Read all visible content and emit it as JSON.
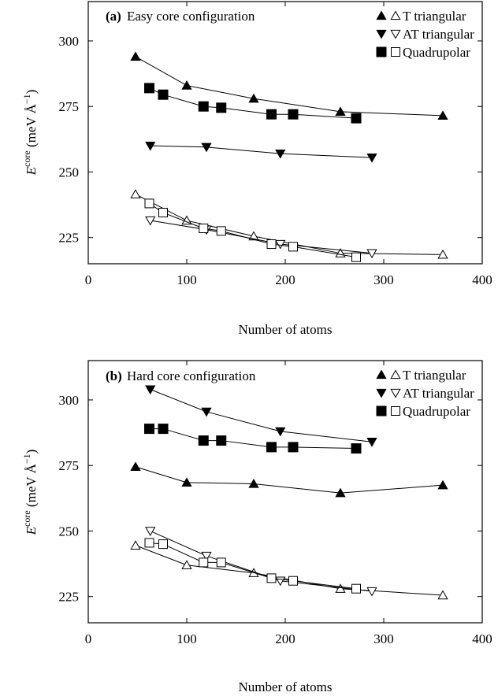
{
  "chart_data": [
    {
      "type": "line",
      "panel_label": "(a)",
      "title": "Easy core configuration",
      "xlabel": "Number of atoms",
      "ylabel_main": "E",
      "ylabel_sup": "core",
      "ylabel_unit": "(meV Å",
      "ylabel_unit_sup": "−1",
      "ylabel_unit_close": ")",
      "xlim": [
        0,
        400
      ],
      "ylim": [
        215,
        315
      ],
      "xticks": [
        0,
        100,
        200,
        300,
        400
      ],
      "yticks": [
        225,
        250,
        275,
        300
      ],
      "grid": false,
      "legend_position": "top-right",
      "series": [
        {
          "name": "T triangular",
          "marker": "triangle-up",
          "filled": true,
          "x": [
            48,
            100,
            168,
            256,
            360
          ],
          "y": [
            294,
            283,
            278,
            273,
            271.5
          ]
        },
        {
          "name": "AT triangular",
          "marker": "triangle-down",
          "filled": true,
          "x": [
            63,
            120,
            195,
            288
          ],
          "y": [
            260,
            259.5,
            257,
            255.5
          ]
        },
        {
          "name": "Quadrupolar",
          "marker": "square",
          "filled": true,
          "x": [
            62,
            76,
            117,
            135,
            186,
            208,
            272
          ],
          "y": [
            282,
            279.5,
            275,
            274.5,
            272,
            272,
            270.5
          ]
        },
        {
          "name": "T triangular",
          "marker": "triangle-up",
          "filled": false,
          "x": [
            48,
            100,
            168,
            256,
            360
          ],
          "y": [
            241.5,
            231.5,
            225.5,
            219,
            218.5
          ]
        },
        {
          "name": "AT triangular",
          "marker": "triangle-down",
          "filled": false,
          "x": [
            63,
            120,
            195,
            288
          ],
          "y": [
            231.5,
            228,
            222.5,
            219
          ]
        },
        {
          "name": "Quadrupolar",
          "marker": "square",
          "filled": false,
          "x": [
            62,
            76,
            117,
            135,
            186,
            208,
            272
          ],
          "y": [
            238,
            234.5,
            228.5,
            227.5,
            222.5,
            221.5,
            217.5
          ]
        }
      ],
      "legend": [
        {
          "filled_marker": "triangle-up",
          "open_marker": "triangle-up",
          "label": "T triangular"
        },
        {
          "filled_marker": "triangle-down",
          "open_marker": "triangle-down",
          "label": "AT triangular"
        },
        {
          "filled_marker": "square",
          "open_marker": "square",
          "label": "Quadrupolar"
        }
      ]
    },
    {
      "type": "line",
      "panel_label": "(b)",
      "title": "Hard core configuration",
      "xlabel": "Number of atoms",
      "ylabel_main": "E",
      "ylabel_sup": "core",
      "ylabel_unit": "(meV Å",
      "ylabel_unit_sup": "−1",
      "ylabel_unit_close": ")",
      "xlim": [
        0,
        400
      ],
      "ylim": [
        215,
        315
      ],
      "xticks": [
        0,
        100,
        200,
        300,
        400
      ],
      "yticks": [
        225,
        250,
        275,
        300
      ],
      "grid": false,
      "legend_position": "top-right",
      "series": [
        {
          "name": "T triangular",
          "marker": "triangle-up",
          "filled": true,
          "x": [
            48,
            100,
            168,
            256,
            360
          ],
          "y": [
            274.5,
            268.5,
            268,
            264.5,
            267.5
          ]
        },
        {
          "name": "AT triangular",
          "marker": "triangle-down",
          "filled": true,
          "x": [
            63,
            120,
            195,
            288
          ],
          "y": [
            304,
            295.5,
            288,
            284
          ]
        },
        {
          "name": "Quadrupolar",
          "marker": "square",
          "filled": true,
          "x": [
            62,
            76,
            117,
            135,
            186,
            208,
            272
          ],
          "y": [
            289,
            289,
            284.5,
            284.5,
            282,
            282,
            281.5
          ]
        },
        {
          "name": "T triangular",
          "marker": "triangle-up",
          "filled": false,
          "x": [
            48,
            100,
            168,
            256,
            360
          ],
          "y": [
            244.5,
            237,
            234,
            228,
            225.5
          ]
        },
        {
          "name": "AT triangular",
          "marker": "triangle-down",
          "filled": false,
          "x": [
            63,
            120,
            195,
            288
          ],
          "y": [
            250,
            240.5,
            231,
            227
          ]
        },
        {
          "name": "Quadrupolar",
          "marker": "square",
          "filled": false,
          "x": [
            62,
            76,
            117,
            135,
            186,
            208,
            272
          ],
          "y": [
            245.5,
            245,
            238,
            238,
            232,
            231,
            228
          ]
        }
      ],
      "legend": [
        {
          "filled_marker": "triangle-up",
          "open_marker": "triangle-up",
          "label": "T triangular"
        },
        {
          "filled_marker": "triangle-down",
          "open_marker": "triangle-down",
          "label": "AT triangular"
        },
        {
          "filled_marker": "square",
          "open_marker": "square",
          "label": "Quadrupolar"
        }
      ]
    }
  ]
}
